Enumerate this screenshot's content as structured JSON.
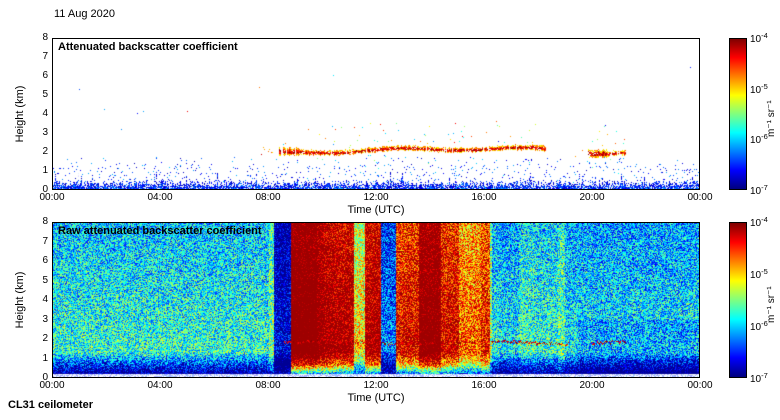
{
  "header": {
    "date_label": "11 Aug 2020"
  },
  "footer": {
    "instrument_label": "CL31 ceilometer"
  },
  "colors": {
    "background": "#ffffff",
    "axis": "#000000"
  },
  "chart_data": [
    {
      "type": "heatmap",
      "title": "Attenuated backscatter coefficient",
      "xlabel": "Time (UTC)",
      "ylabel": "Height (km)",
      "x_ticks": [
        "00:00",
        "04:00",
        "08:00",
        "12:00",
        "16:00",
        "20:00",
        "00:00"
      ],
      "y_ticks": [
        "0",
        "1",
        "2",
        "3",
        "4",
        "5",
        "6",
        "7",
        "8"
      ],
      "x_range_hours": [
        0,
        24
      ],
      "y_range_km": [
        0,
        8
      ],
      "grid": false,
      "colorbar": {
        "scale": "log",
        "range_m1sr1": [
          1e-07,
          0.0001
        ],
        "ticks": [
          {
            "base": "10",
            "exp": "-4"
          },
          {
            "base": "10",
            "exp": "-5"
          },
          {
            "base": "10",
            "exp": "-6"
          },
          {
            "base": "10",
            "exp": "-7"
          }
        ],
        "unit": "m⁻¹ sr⁻¹",
        "colormap": "jet",
        "colormap_stops": [
          {
            "pos": 0,
            "color": "#00007f"
          },
          {
            "pos": 0.125,
            "color": "#0000ff"
          },
          {
            "pos": 0.375,
            "color": "#00ffff"
          },
          {
            "pos": 0.625,
            "color": "#ffff00"
          },
          {
            "pos": 0.875,
            "color": "#ff0000"
          },
          {
            "pos": 1,
            "color": "#7f0000"
          }
        ]
      },
      "features": {
        "surface_aerosol_layer": {
          "time_hours": [
            0,
            24
          ],
          "height_km": [
            0,
            0.5
          ],
          "approx_value": "1e-6 to 1e-5 (blue)"
        },
        "elevated_layers": [
          {
            "time_hours": [
              8.4,
              18.3
            ],
            "height_km": 2.0,
            "approx_value": "~1e-4 (red/orange layer)"
          },
          {
            "time_hours": [
              19.9,
              21.3
            ],
            "height_km": 1.9,
            "approx_value": "~1e-4 (red/orange layer)"
          }
        ],
        "scattered_noise": "sparse blue specks mostly below 1.5 km throughout the day, a few isolated specks up to 7 km"
      }
    },
    {
      "type": "heatmap",
      "title": "Raw attenuated backscatter coefficient",
      "xlabel": "Time (UTC)",
      "ylabel": "Height (km)",
      "x_ticks": [
        "00:00",
        "04:00",
        "08:00",
        "12:00",
        "16:00",
        "20:00",
        "00:00"
      ],
      "y_ticks": [
        "0",
        "1",
        "2",
        "3",
        "4",
        "5",
        "6",
        "7",
        "8"
      ],
      "x_range_hours": [
        0,
        24
      ],
      "y_range_km": [
        0,
        8
      ],
      "grid": false,
      "colorbar": {
        "scale": "log",
        "range_m1sr1": [
          1e-07,
          0.0001
        ],
        "ticks": [
          {
            "base": "10",
            "exp": "-4"
          },
          {
            "base": "10",
            "exp": "-5"
          },
          {
            "base": "10",
            "exp": "-6"
          },
          {
            "base": "10",
            "exp": "-7"
          }
        ],
        "unit": "m⁻¹ sr⁻¹",
        "colormap": "jet",
        "colormap_stops": [
          {
            "pos": 0,
            "color": "#00007f"
          },
          {
            "pos": 0.125,
            "color": "#0000ff"
          },
          {
            "pos": 0.375,
            "color": "#00ffff"
          },
          {
            "pos": 0.625,
            "color": "#ffff00"
          },
          {
            "pos": 0.875,
            "color": "#ff0000"
          },
          {
            "pos": 1,
            "color": "#7f0000"
          }
        ]
      },
      "features": {
        "background_noise": "speckled green/cyan noise at all heights, bluer before 08:00 and after 16:30",
        "precipitation_or_mixing_streaks": {
          "time_hours": [
            8.2,
            16.2
          ],
          "height_km": [
            0.5,
            8
          ],
          "approx_value": "vertical red/orange streaks ~1e-5 to 1e-4 with narrow blue gaps"
        },
        "cloud_aerosol_line": [
          {
            "time_hours": [
              8.6,
              19.2
            ],
            "height_km": 1.8
          },
          {
            "time_hours": [
              20.0,
              21.3
            ],
            "height_km": 1.8
          }
        ],
        "near_surface": {
          "height_km": [
            0,
            1.2
          ],
          "approx_value": "blue ~1e-7 to 1e-6, pale white band below 0.2 km"
        }
      }
    }
  ]
}
